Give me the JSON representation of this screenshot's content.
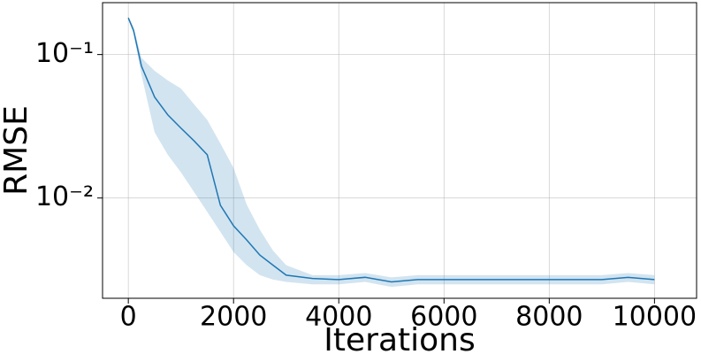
{
  "chart_data": {
    "type": "line",
    "x_label": "Iterations",
    "y_label": "RMSE",
    "log_y": true,
    "grid": true,
    "xlim": [
      -490,
      10800
    ],
    "ylim": [
      0.002,
      0.23
    ],
    "xticks": [
      0,
      2000,
      4000,
      6000,
      8000,
      10000
    ],
    "yticks": [
      {
        "value": 0.1,
        "label": "10⁻¹"
      },
      {
        "value": 0.01,
        "label": "10⁻²"
      }
    ],
    "x": [
      0,
      100,
      250,
      500,
      750,
      1000,
      1250,
      1500,
      1750,
      2000,
      2250,
      2500,
      2750,
      3000,
      3500,
      4000,
      4500,
      5000,
      5500,
      6000,
      6500,
      7000,
      7500,
      8000,
      8500,
      9000,
      9500,
      10000
    ],
    "series": [
      {
        "color": "#1f77b4",
        "values": [
          0.18,
          0.147,
          0.083,
          0.0505,
          0.038,
          0.0307,
          0.025,
          0.02,
          0.0089,
          0.0064,
          0.0051,
          0.004,
          0.0034,
          0.0029,
          0.00275,
          0.0027,
          0.0028,
          0.0026,
          0.0027,
          0.0027,
          0.0027,
          0.0027,
          0.0027,
          0.0027,
          0.0027,
          0.0027,
          0.0028,
          0.0027
        ],
        "upper": [
          0.185,
          0.155,
          0.095,
          0.077,
          0.066,
          0.058,
          0.045,
          0.035,
          0.024,
          0.0162,
          0.009,
          0.006,
          0.0043,
          0.0034,
          0.0029,
          0.0029,
          0.003,
          0.0028,
          0.0029,
          0.0029,
          0.0029,
          0.0029,
          0.0029,
          0.0029,
          0.0029,
          0.0029,
          0.003,
          0.0029
        ],
        "lower": [
          0.175,
          0.14,
          0.072,
          0.0287,
          0.02,
          0.0151,
          0.011,
          0.008,
          0.0058,
          0.0042,
          0.0034,
          0.0029,
          0.0027,
          0.0026,
          0.0025,
          0.0025,
          0.0026,
          0.0024,
          0.0025,
          0.0025,
          0.0025,
          0.0025,
          0.0025,
          0.0025,
          0.0025,
          0.0025,
          0.0026,
          0.0025
        ]
      }
    ]
  }
}
